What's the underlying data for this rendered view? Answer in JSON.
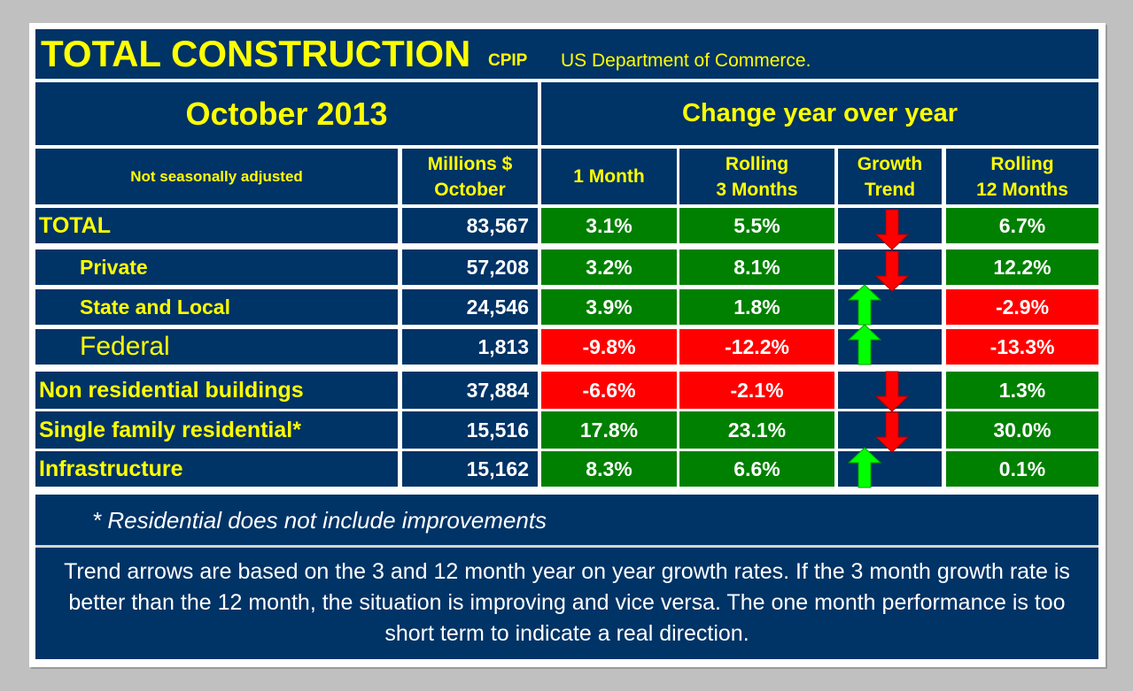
{
  "title": {
    "main": "TOTAL CONSTRUCTION",
    "tag": "CPIP",
    "source": "US Department of Commerce."
  },
  "period": "October 2013",
  "change_header": "Change year over year",
  "columns": {
    "note": "Not seasonally adjusted",
    "millions_line1": "Millions $",
    "millions_line2": "October",
    "one_month": "1 Month",
    "rolling3_line1": "Rolling",
    "rolling3_line2": "3 Months",
    "trend_line1": "Growth",
    "trend_line2": "Trend",
    "rolling12_line1": "Rolling",
    "rolling12_line2": "12 Months"
  },
  "rows": [
    {
      "label": "TOTAL",
      "millions": "83,567",
      "m1": "3.1%",
      "m3": "5.5%",
      "m12": "6.7%",
      "trend": "down"
    },
    {
      "label": "Private",
      "millions": "57,208",
      "m1": "3.2%",
      "m3": "8.1%",
      "m12": "12.2%",
      "trend": "down"
    },
    {
      "label": "State and Local",
      "millions": "24,546",
      "m1": "3.9%",
      "m3": "1.8%",
      "m12": "-2.9%",
      "trend": "up"
    },
    {
      "label": "Federal",
      "millions": "1,813",
      "m1": "-9.8%",
      "m3": "-12.2%",
      "m12": "-13.3%",
      "trend": "up"
    },
    {
      "label": "Non residential buildings",
      "millions": "37,884",
      "m1": "-6.6%",
      "m3": "-2.1%",
      "m12": "1.3%",
      "trend": "down"
    },
    {
      "label": "Single family residential*",
      "millions": "15,516",
      "m1": "17.8%",
      "m3": "23.1%",
      "m12": "30.0%",
      "trend": "down"
    },
    {
      "label": "Infrastructure",
      "millions": "15,162",
      "m1": "8.3%",
      "m3": "6.6%",
      "m12": "0.1%",
      "trend": "up"
    }
  ],
  "colors": {
    "navy": "#003366",
    "positive": "#008000",
    "negative": "#ff0000",
    "up_arrow": "#00ff00",
    "down_arrow": "#ff0000",
    "heading": "#ffff00"
  },
  "footnote": "* Residential does not include improvements",
  "explanation": "Trend arrows are based on the 3 and 12 month year on year growth rates. If the 3 month growth rate is better than the 12 month, the situation is improving and vice versa. The one month performance is too short term to indicate a real direction."
}
